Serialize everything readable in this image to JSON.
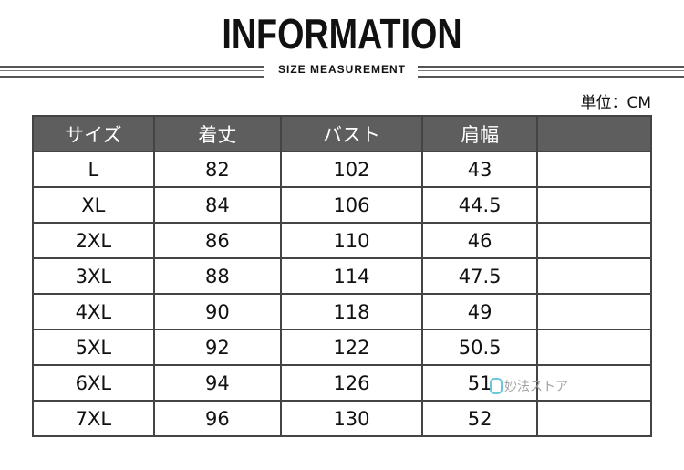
{
  "header": {
    "title": "INFORMATION",
    "subtitle": "SIZE MEASUREMENT",
    "unit": "単位：CM"
  },
  "table": {
    "columns": [
      "サイズ",
      "着丈",
      "バスト",
      "肩幅",
      ""
    ],
    "rows": [
      [
        "L",
        "82",
        "102",
        "43",
        ""
      ],
      [
        "XL",
        "84",
        "106",
        "44.5",
        ""
      ],
      [
        "2XL",
        "86",
        "110",
        "46",
        ""
      ],
      [
        "3XL",
        "88",
        "114",
        "47.5",
        ""
      ],
      [
        "4XL",
        "90",
        "118",
        "49",
        ""
      ],
      [
        "5XL",
        "92",
        "122",
        "50.5",
        ""
      ],
      [
        "6XL",
        "94",
        "126",
        "51",
        ""
      ],
      [
        "7XL",
        "96",
        "130",
        "52",
        ""
      ]
    ]
  },
  "watermark": {
    "text": "妙法ストア"
  },
  "colors": {
    "header_bg": "#5e5e5e",
    "grid": "#444444"
  }
}
